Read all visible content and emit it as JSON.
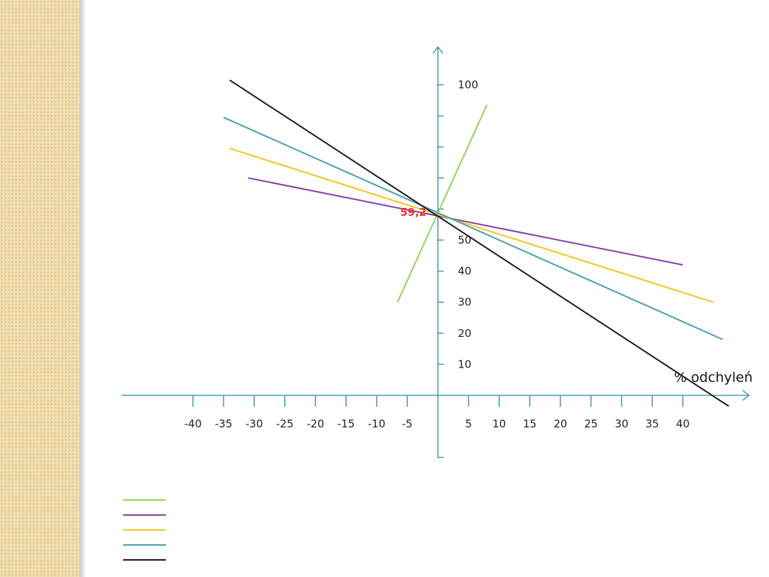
{
  "background": {
    "side_pattern_color": "#f1dfb3",
    "side_dot_color": "#e2c98e"
  },
  "chart_data": {
    "type": "line",
    "title": "",
    "xlabel": "% odchyleń",
    "ylabel": "",
    "xlim": [
      -47,
      47
    ],
    "ylim": [
      -20,
      113
    ],
    "x_ticks": [
      -40,
      -35,
      -30,
      -25,
      -20,
      -15,
      -10,
      -5,
      5,
      10,
      15,
      20,
      25,
      30,
      35,
      40
    ],
    "y_ticks": [
      10,
      20,
      30,
      40,
      50,
      60,
      70,
      80,
      90,
      100
    ],
    "x_tick_labels": [
      "-40",
      "-35",
      "-30",
      "-25",
      "-20",
      "-15",
      "-10",
      "-5",
      "5",
      "10",
      "15",
      "20",
      "25",
      "30",
      "35",
      "40"
    ],
    "y_tick_labels": [
      "10",
      "20",
      "30",
      "40",
      "50",
      "",
      "",
      "",
      "",
      "100"
    ],
    "axis_color": "#4a9eb0",
    "grid": false,
    "annotations": [
      {
        "text": "59,2",
        "x": 0,
        "y": 59.2,
        "color": "#e8332e"
      }
    ],
    "series": [
      {
        "color": "#8fd45a",
        "points": [
          [
            -6.6,
            30.0
          ],
          [
            8.0,
            93.5
          ]
        ]
      },
      {
        "color": "#7d3fa6",
        "points": [
          [
            -31.0,
            70.0
          ],
          [
            40.0,
            42.0
          ]
        ]
      },
      {
        "color": "#f5c518",
        "points": [
          [
            -34.0,
            79.5
          ],
          [
            45.0,
            30.0
          ]
        ]
      },
      {
        "color": "#4a9eb0",
        "points": [
          [
            -35.0,
            89.5
          ],
          [
            46.5,
            18.0
          ]
        ]
      },
      {
        "color": "#1a1a1a",
        "points": [
          [
            -34.0,
            101.5
          ],
          [
            47.5,
            -3.5
          ]
        ]
      }
    ],
    "legend": {
      "placement": "bottom-left",
      "entries": [
        {
          "color": "#8fd45a"
        },
        {
          "color": "#7d3fa6"
        },
        {
          "color": "#f5c518"
        },
        {
          "color": "#4a9eb0"
        },
        {
          "color": "#1a1a1a"
        }
      ]
    }
  }
}
